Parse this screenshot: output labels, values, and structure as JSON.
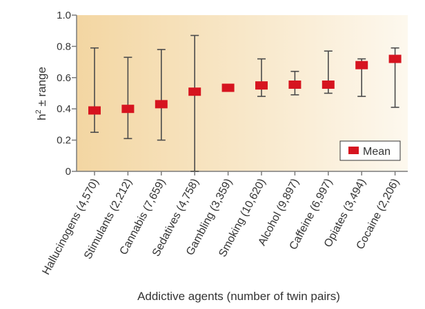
{
  "chart_data": {
    "type": "errorbar",
    "title": "",
    "xlabel": "Addictive agents (number of twin pairs)",
    "ylabel_main": "h",
    "ylabel_sup": "2",
    "ylabel_rest": " ± range",
    "ylim": [
      0,
      1.0
    ],
    "yticks": [
      "0",
      "0.2",
      "0.4",
      "0.6",
      "0.8",
      "1.0"
    ],
    "yticks_values": [
      0,
      0.2,
      0.4,
      0.6,
      0.8,
      1.0
    ],
    "legend": {
      "label": "Mean",
      "position": "bottom-right"
    },
    "colors": {
      "marker": "#d6141f",
      "errorbar": "#4a4a4a",
      "bg_left": "#f3d6a2",
      "bg_right": "#fdf8ee",
      "axis": "#7a7a7a"
    },
    "categories": [
      "Hallucinogens (4,570)",
      "Stimulants (2,212)",
      "Cannabis (7,659)",
      "Sedatives (4,758)",
      "Gambling (3,359)",
      "Smoking (10,620)",
      "Alcohol (9,897)",
      "Caffeine (6,997)",
      "Opiates (3,494)",
      "Cocaine (2,206)"
    ],
    "mean": [
      0.39,
      0.4,
      0.43,
      0.51,
      0.535,
      0.55,
      0.555,
      0.555,
      0.68,
      0.72
    ],
    "low": [
      0.25,
      0.21,
      0.2,
      0.0,
      0.535,
      0.48,
      0.49,
      0.5,
      0.48,
      0.41
    ],
    "high": [
      0.79,
      0.73,
      0.78,
      0.87,
      0.535,
      0.72,
      0.64,
      0.77,
      0.72,
      0.79
    ]
  }
}
